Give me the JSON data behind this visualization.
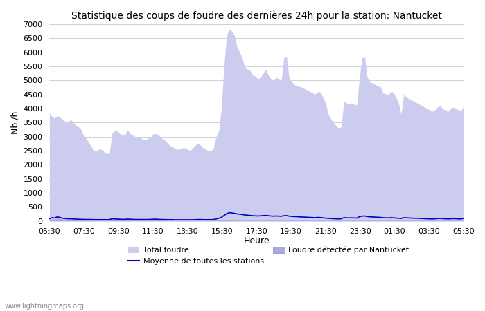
{
  "title": "Statistique des coups de foudre des dernières 24h pour la station: Nantucket",
  "ylabel": "Nb /h",
  "xlabel": "Heure",
  "watermark": "www.lightningmaps.org",
  "ylim": [
    0,
    7000
  ],
  "yticks": [
    0,
    500,
    1000,
    1500,
    2000,
    2500,
    3000,
    3500,
    4000,
    4500,
    5000,
    5500,
    6000,
    6500,
    7000
  ],
  "xtick_labels": [
    "05:30",
    "07:30",
    "09:30",
    "11:30",
    "13:30",
    "15:30",
    "17:30",
    "19:30",
    "21:30",
    "23:30",
    "01:30",
    "03:30",
    "05:30"
  ],
  "background_color": "#ffffff",
  "plot_bg_color": "#ffffff",
  "grid_color": "#d0d0d0",
  "total_foudre_color": "#ccccee",
  "nantucket_color": "#aaaadd",
  "moyenne_color": "#0000cc",
  "total_foudre": [
    3850,
    3700,
    3650,
    3750,
    3700,
    3600,
    3550,
    3500,
    3600,
    3550,
    3400,
    3350,
    3300,
    3050,
    2950,
    2800,
    2650,
    2500,
    2500,
    2550,
    2550,
    2450,
    2400,
    2400,
    3100,
    3200,
    3200,
    3100,
    3050,
    3050,
    3250,
    3100,
    3050,
    3000,
    3000,
    2950,
    2900,
    2900,
    2950,
    3000,
    3100,
    3100,
    3050,
    2950,
    2900,
    2800,
    2700,
    2650,
    2600,
    2550,
    2550,
    2600,
    2600,
    2550,
    2500,
    2600,
    2700,
    2750,
    2700,
    2600,
    2550,
    2500,
    2500,
    2600,
    3000,
    3200,
    4000,
    5500,
    6600,
    6800,
    6750,
    6600,
    6200,
    6000,
    5800,
    5450,
    5400,
    5350,
    5200,
    5150,
    5050,
    5100,
    5250,
    5400,
    5200,
    5050,
    5000,
    5100,
    5050,
    5000,
    5800,
    5850,
    5100,
    4950,
    4850,
    4800,
    4780,
    4750,
    4700,
    4650,
    4600,
    4550,
    4500,
    4600,
    4580,
    4400,
    4200,
    3800,
    3650,
    3500,
    3400,
    3300,
    3350,
    4250,
    4200,
    4150,
    4200,
    4150,
    4120,
    5100,
    5800,
    5850,
    5100,
    4950,
    4900,
    4860,
    4800,
    4780,
    4550,
    4520,
    4500,
    4600,
    4580,
    4400,
    4200,
    3800,
    4500,
    4400,
    4350,
    4300,
    4250,
    4200,
    4150,
    4100,
    4050,
    4000,
    3950,
    3900,
    3950,
    4050,
    4100,
    3980,
    3950,
    3900,
    4000,
    4050,
    4000,
    3950,
    3900,
    4100
  ],
  "nantucket_data": [
    50,
    80,
    70,
    100,
    90,
    70,
    60,
    55,
    55,
    50,
    45,
    45,
    40,
    40,
    40,
    40,
    40,
    40,
    40,
    40,
    40,
    40,
    40,
    40,
    55,
    55,
    50,
    45,
    40,
    40,
    45,
    40,
    40,
    35,
    35,
    35,
    35,
    35,
    35,
    35,
    40,
    40,
    40,
    35,
    35,
    30,
    30,
    30,
    25,
    25,
    25,
    25,
    25,
    25,
    25,
    25,
    25,
    25,
    25,
    25,
    25,
    25,
    25,
    25,
    25,
    30,
    35,
    40,
    40,
    40,
    35,
    30,
    30,
    25,
    25,
    25,
    25,
    25,
    25,
    25,
    25,
    25,
    25,
    25,
    25,
    25,
    25,
    25,
    25,
    25,
    25,
    25,
    25,
    25,
    25,
    25,
    25,
    25,
    25,
    25,
    25,
    25,
    25,
    25,
    25,
    25,
    25,
    25,
    25,
    25,
    25,
    25,
    25,
    25,
    25,
    25,
    25,
    25,
    25,
    25,
    25,
    25,
    25,
    25,
    25,
    25,
    25,
    25,
    25,
    25,
    25,
    25,
    25,
    25,
    25,
    25,
    25,
    25,
    25,
    25,
    25,
    25,
    25,
    25,
    25,
    25,
    25,
    25,
    25,
    25,
    25,
    25,
    25,
    25,
    25,
    25,
    25,
    25,
    25,
    25
  ],
  "moyenne_data": [
    80,
    120,
    110,
    150,
    130,
    100,
    90,
    80,
    80,
    75,
    70,
    65,
    60,
    60,
    55,
    55,
    55,
    50,
    50,
    50,
    50,
    50,
    50,
    50,
    80,
    75,
    70,
    65,
    60,
    60,
    70,
    65,
    60,
    55,
    55,
    55,
    55,
    55,
    55,
    60,
    65,
    65,
    60,
    55,
    55,
    50,
    50,
    50,
    45,
    45,
    45,
    45,
    45,
    45,
    45,
    45,
    50,
    55,
    55,
    50,
    50,
    50,
    50,
    55,
    75,
    100,
    130,
    200,
    260,
    300,
    290,
    275,
    255,
    245,
    235,
    215,
    210,
    200,
    190,
    185,
    180,
    185,
    195,
    200,
    190,
    180,
    175,
    180,
    175,
    170,
    190,
    195,
    175,
    165,
    160,
    155,
    150,
    145,
    140,
    135,
    130,
    125,
    120,
    130,
    125,
    115,
    105,
    95,
    90,
    85,
    80,
    75,
    80,
    120,
    115,
    110,
    115,
    110,
    105,
    155,
    175,
    180,
    160,
    150,
    145,
    140,
    135,
    130,
    120,
    115,
    110,
    120,
    115,
    105,
    100,
    90,
    120,
    115,
    110,
    105,
    100,
    100,
    95,
    90,
    85,
    80,
    78,
    75,
    80,
    90,
    95,
    85,
    80,
    75,
    82,
    88,
    82,
    78,
    75,
    95
  ]
}
